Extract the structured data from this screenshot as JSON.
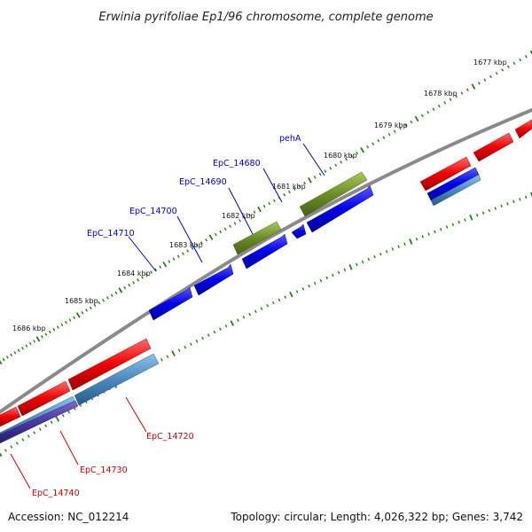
{
  "title": "Erwinia pyrifoliae Ep1/96 chromosome, complete genome",
  "footer": {
    "accession": "Accession: NC_012214",
    "summary": "Topology: circular; Length: 4,026,322 bp; Genes: 3,742"
  },
  "ruler_labels": [
    "1677 kbp",
    "1678 kbp",
    "1679 kbp",
    "1680 kbp",
    "1681 kbp",
    "1682 kbp",
    "1683 kbp",
    "1684 kbp",
    "1685 kbp",
    "1686 kbp"
  ],
  "gene_labels": {
    "pehA": "pehA",
    "epc14680": "EpC_14680",
    "epc14690": "EpC_14690",
    "epc14700": "EpC_14700",
    "epc14710": "EpC_14710",
    "epc14720": "EpC_14720",
    "epc14730": "EpC_14730",
    "epc14740": "EpC_14740"
  },
  "colors": {
    "forward_label": "#0000cc",
    "reverse_label": "#cc0000",
    "backbone": "#8a8a8a",
    "tick": "#2a7a1a",
    "cds_forward": "#0000ee",
    "cds_reverse": "#ee0000",
    "gene_forward": "#6b8e23",
    "gene_reverse": "#4a8ac0"
  }
}
